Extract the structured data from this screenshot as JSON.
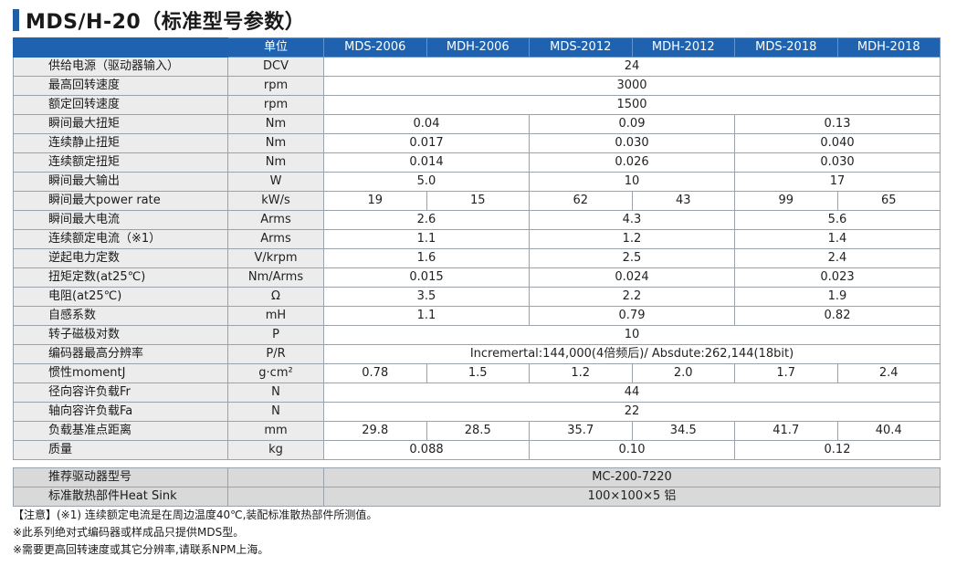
{
  "title": "MDS/H-20（标准型号参数）",
  "header": {
    "unit_label": "单位",
    "models": [
      "MDS-2006",
      "MDH-2006",
      "MDS-2012",
      "MDH-2012",
      "MDS-2018",
      "MDH-2018"
    ]
  },
  "rows": [
    {
      "name": "供给电源（驱动器输入）",
      "unit": "DCV",
      "cells": [
        {
          "v": "24",
          "span": 6
        }
      ]
    },
    {
      "name": "最高回转速度",
      "unit": "rpm",
      "cells": [
        {
          "v": "3000",
          "span": 6
        }
      ]
    },
    {
      "name": "额定回转速度",
      "unit": "rpm",
      "cells": [
        {
          "v": "1500",
          "span": 6
        }
      ]
    },
    {
      "name": "瞬间最大扭矩",
      "unit": "Nm",
      "cells": [
        {
          "v": "0.04",
          "span": 2
        },
        {
          "v": "0.09",
          "span": 2
        },
        {
          "v": "0.13",
          "span": 2
        }
      ]
    },
    {
      "name": "连续静止扭矩",
      "unit": "Nm",
      "cells": [
        {
          "v": "0.017",
          "span": 2
        },
        {
          "v": "0.030",
          "span": 2
        },
        {
          "v": "0.040",
          "span": 2
        }
      ]
    },
    {
      "name": "连续额定扭矩",
      "unit": "Nm",
      "cells": [
        {
          "v": "0.014",
          "span": 2
        },
        {
          "v": "0.026",
          "span": 2
        },
        {
          "v": "0.030",
          "span": 2
        }
      ]
    },
    {
      "name": "瞬间最大输出",
      "unit": "W",
      "cells": [
        {
          "v": "5.0",
          "span": 2
        },
        {
          "v": "10",
          "span": 2
        },
        {
          "v": "17",
          "span": 2
        }
      ]
    },
    {
      "name": "瞬间最大power rate",
      "unit": "kW/s",
      "cells": [
        {
          "v": "19",
          "span": 1
        },
        {
          "v": "15",
          "span": 1
        },
        {
          "v": "62",
          "span": 1
        },
        {
          "v": "43",
          "span": 1
        },
        {
          "v": "99",
          "span": 1
        },
        {
          "v": "65",
          "span": 1
        }
      ]
    },
    {
      "name": "瞬间最大电流",
      "unit": "Arms",
      "cells": [
        {
          "v": "2.6",
          "span": 2
        },
        {
          "v": "4.3",
          "span": 2
        },
        {
          "v": "5.6",
          "span": 2
        }
      ]
    },
    {
      "name": "连续额定电流（※1）",
      "unit": "Arms",
      "cells": [
        {
          "v": "1.1",
          "span": 2
        },
        {
          "v": "1.2",
          "span": 2
        },
        {
          "v": "1.4",
          "span": 2
        }
      ]
    },
    {
      "name": "逆起电力定数",
      "unit": "V/krpm",
      "cells": [
        {
          "v": "1.6",
          "span": 2
        },
        {
          "v": "2.5",
          "span": 2
        },
        {
          "v": "2.4",
          "span": 2
        }
      ]
    },
    {
      "name": "扭矩定数(at25℃)",
      "unit": "Nm/Arms",
      "cells": [
        {
          "v": "0.015",
          "span": 2
        },
        {
          "v": "0.024",
          "span": 2
        },
        {
          "v": "0.023",
          "span": 2
        }
      ]
    },
    {
      "name": "电阻(at25℃)",
      "unit": "Ω",
      "cells": [
        {
          "v": "3.5",
          "span": 2
        },
        {
          "v": "2.2",
          "span": 2
        },
        {
          "v": "1.9",
          "span": 2
        }
      ]
    },
    {
      "name": "自感系数",
      "unit": "mH",
      "cells": [
        {
          "v": "1.1",
          "span": 2
        },
        {
          "v": "0.79",
          "span": 2
        },
        {
          "v": "0.82",
          "span": 2
        }
      ]
    },
    {
      "name": "转子磁极对数",
      "unit": "P",
      "cells": [
        {
          "v": "10",
          "span": 6
        }
      ]
    },
    {
      "name": "编码器最高分辨率",
      "unit": "P/R",
      "cells": [
        {
          "v": "Incremertal:144,000(4倍频后)/ Absdute:262,144(18bit)",
          "span": 6
        }
      ]
    },
    {
      "name": "惯性momentJ",
      "unit": "g·cm²",
      "cells": [
        {
          "v": "0.78",
          "span": 1
        },
        {
          "v": "1.5",
          "span": 1
        },
        {
          "v": "1.2",
          "span": 1
        },
        {
          "v": "2.0",
          "span": 1
        },
        {
          "v": "1.7",
          "span": 1
        },
        {
          "v": "2.4",
          "span": 1
        }
      ]
    },
    {
      "name": "径向容许负载Fr",
      "unit": "N",
      "cells": [
        {
          "v": "44",
          "span": 6
        }
      ]
    },
    {
      "name": "轴向容许负载Fa",
      "unit": "N",
      "cells": [
        {
          "v": "22",
          "span": 6
        }
      ]
    },
    {
      "name": "负载基准点距离",
      "unit": "mm",
      "cells": [
        {
          "v": "29.8",
          "span": 1
        },
        {
          "v": "28.5",
          "span": 1
        },
        {
          "v": "35.7",
          "span": 1
        },
        {
          "v": "34.5",
          "span": 1
        },
        {
          "v": "41.7",
          "span": 1
        },
        {
          "v": "40.4",
          "span": 1
        }
      ]
    },
    {
      "name": "质量",
      "unit": "kg",
      "cells": [
        {
          "v": "0.088",
          "span": 2
        },
        {
          "v": "0.10",
          "span": 2
        },
        {
          "v": "0.12",
          "span": 2
        }
      ]
    }
  ],
  "driver_rows": [
    {
      "name": "推荐驱动器型号",
      "value": "MC-200-7220"
    },
    {
      "name": "标准散热部件Heat Sink",
      "value": "100×100×5 铝"
    }
  ],
  "notes": [
    "【注意】(※1) 连续额定电流是在周边温度40℃,装配标准散热部件所测值。",
    "※此系列绝对式编码器或样成品只提供MDS型。",
    "※需要更高回转速度或其它分辨率,请联系NPM上海。"
  ]
}
